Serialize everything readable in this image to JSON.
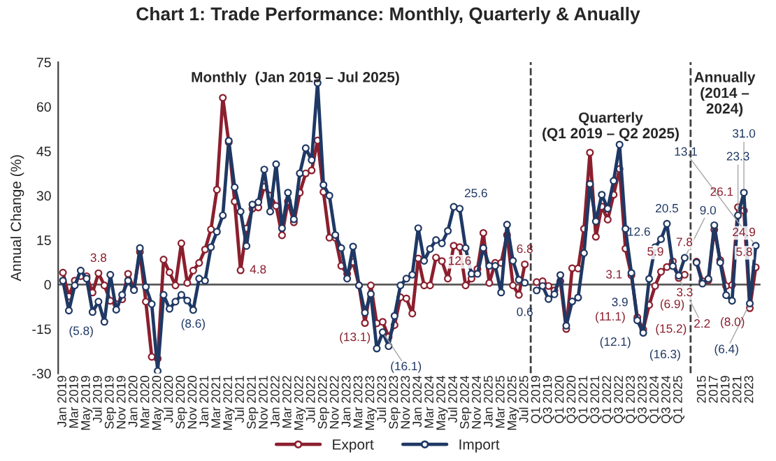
{
  "chart_data": {
    "type": "line",
    "title": "Chart 1: Trade Performance: Monthly, Quarterly & Anually",
    "ylabel": "Annual Change (%)",
    "annotations": [
      "Monthly  (Jan 2019 – Jul 2025)",
      "Quarterly\n(Q1 2019 – Q2 2025)",
      "Annually\n(2014 –\n2024)"
    ],
    "categories": [
      "Jan 2019",
      null,
      "Mar 2019",
      null,
      "May 2019",
      null,
      "Jul 2019",
      null,
      "Sep 2019",
      null,
      "Nov 2019",
      null,
      "Jan 2020",
      null,
      "Mar 2020",
      null,
      "May 2020",
      null,
      "Jul 2020",
      null,
      "Sep 2020",
      null,
      "Nov 2020",
      null,
      "Jan 2021",
      null,
      "Mar 2021",
      null,
      "May 2021",
      null,
      "Jul 2021",
      null,
      "Sep 2021",
      null,
      "Nov 2021",
      null,
      "Jan 2022",
      null,
      "Mar 2022",
      null,
      "May 2022",
      null,
      "Jul 2022",
      null,
      "Sep 2022",
      null,
      "Nov 2022",
      null,
      "Jan 2023",
      null,
      "Mar 2023",
      null,
      "May 2023",
      null,
      "Jul 2023",
      null,
      "Sep 2023",
      null,
      "Nov 2023",
      null,
      "Jan 2024",
      null,
      "Mar 2024",
      null,
      "May 2024",
      null,
      "Jul 2024",
      null,
      "Sep 2024",
      null,
      "Nov 2024",
      null,
      "Jan 2025",
      null,
      "Mar 2025",
      null,
      "May 2025",
      null,
      "Jul 2025",
      null,
      "Q1 2019",
      null,
      "Q3 2019",
      null,
      "Q1 2020",
      null,
      "Q3 2020",
      null,
      "Q1 2021",
      null,
      "Q3 2021",
      null,
      "Q1 2022",
      null,
      "Q3 2022",
      null,
      "Q1 2023",
      null,
      "Q3 2023",
      null,
      "Q1 2024",
      null,
      "Q3 2024",
      null,
      "Q1 2025",
      null,
      null,
      null,
      "2015",
      null,
      "2017",
      null,
      "2019",
      null,
      "2021",
      null,
      "2023",
      null
    ],
    "series": [
      {
        "name": "Export",
        "color": "#8b1f2e",
        "values": [
          4,
          -4,
          1.3,
          2.8,
          2.8,
          -2.7,
          3.8,
          -0.3,
          -5.5,
          -6.6,
          -5,
          3.6,
          -1.6,
          11,
          -5.8,
          -24.4,
          -25,
          8.4,
          4.1,
          -0.3,
          13.9,
          0.5,
          4.7,
          7.3,
          11.8,
          18.6,
          32,
          63,
          48,
          28,
          4.8,
          18.9,
          25.6,
          26,
          33,
          30,
          26.5,
          16.6,
          28,
          21,
          31,
          37.5,
          38.5,
          48.6,
          31.2,
          15.8,
          15.8,
          6.3,
          3.6,
          7.6,
          -0.3,
          -13,
          -0.3,
          -13.1,
          -12.6,
          -17.7,
          -13.7,
          -4.3,
          -4.7,
          -9.8,
          8.8,
          -0.3,
          -0.3,
          9.1,
          7.9,
          2,
          13.1,
          12.6,
          -0.3,
          2,
          5.2,
          17.4,
          0.5,
          7.3,
          7.3,
          16.7,
          -0.3,
          -3.5,
          6.8,
          null,
          0.8,
          1.1,
          -0.5,
          -2,
          1.1,
          -15,
          5.5,
          5.4,
          18.8,
          44.5,
          16.1,
          26.3,
          21.9,
          30.3,
          39,
          12.1,
          3.1,
          -11.1,
          -15.2,
          -6.9,
          -0.5,
          4.3,
          5.9,
          7.8,
          2.2,
          3.3,
          null,
          7.7,
          1.1,
          1.4,
          18.5,
          8.2,
          -0.5,
          -0.2,
          26.1,
          24.9,
          -8.0,
          5.8
        ],
        "value_labels": [
          null,
          null,
          null,
          null,
          null,
          null,
          "3.8",
          null,
          null,
          null,
          null,
          null,
          null,
          null,
          null,
          null,
          null,
          null,
          null,
          null,
          null,
          null,
          null,
          null,
          null,
          null,
          null,
          null,
          null,
          null,
          "4.8",
          null,
          null,
          null,
          null,
          null,
          null,
          null,
          null,
          null,
          null,
          null,
          null,
          null,
          null,
          null,
          null,
          null,
          null,
          null,
          null,
          null,
          null,
          "(13.1)",
          null,
          null,
          null,
          null,
          null,
          null,
          null,
          null,
          null,
          null,
          null,
          null,
          null,
          "12.6",
          null,
          null,
          null,
          null,
          null,
          null,
          null,
          null,
          null,
          null,
          "6.8",
          null,
          null,
          null,
          null,
          null,
          null,
          null,
          null,
          null,
          null,
          null,
          null,
          null,
          null,
          null,
          null,
          null,
          "3.1",
          "(11.1)",
          "(15.2)",
          "(6.9)",
          null,
          null,
          "5.9",
          "7.8",
          "2.2",
          "3.3",
          null,
          null,
          null,
          null,
          null,
          null,
          null,
          null,
          "26.1",
          "24.9",
          "(8.0)",
          "5.8"
        ]
      },
      {
        "name": "Import",
        "color": "#1f3864",
        "values": [
          1.3,
          -8.8,
          -0.3,
          4.7,
          2,
          -9.3,
          -5.8,
          -12.6,
          3.3,
          -8.5,
          -3.5,
          1.3,
          -1.9,
          12.3,
          -0.8,
          -6.6,
          -29.2,
          -3.5,
          -8.2,
          -5.8,
          -3.5,
          -5.4,
          -8.6,
          2,
          1.3,
          12.6,
          17.8,
          23.3,
          48.5,
          32.8,
          24.6,
          13,
          27,
          27.8,
          38.8,
          24.6,
          40.6,
          19,
          31,
          22,
          37.5,
          46,
          42,
          68,
          33.6,
          30,
          16.7,
          12.3,
          2,
          12.8,
          -0.3,
          -9.5,
          -3.2,
          -21.6,
          -16.1,
          -20.8,
          -10.6,
          -0.3,
          2,
          3.3,
          19,
          8,
          12,
          15,
          13.9,
          18.1,
          26.2,
          25.6,
          12.3,
          3.6,
          3.6,
          12.3,
          6.3,
          6.3,
          -2.7,
          20.2,
          8,
          1.6,
          0.6,
          null,
          -2,
          -0.5,
          -4.9,
          -3.3,
          3.2,
          -13.9,
          -5.7,
          -4.4,
          10.6,
          33.9,
          21.3,
          30.3,
          25.6,
          35,
          47.2,
          18.8,
          3.9,
          -12.1,
          -16.3,
          1.9,
          12.6,
          15.3,
          20.5,
          6.2,
          3,
          9.0,
          null,
          7.4,
          0.3,
          1.9,
          20,
          7.4,
          -3.6,
          -5.5,
          23.3,
          31.0,
          -6.4,
          13.1
        ],
        "value_labels": [
          null,
          null,
          null,
          null,
          null,
          null,
          "(5.8)",
          null,
          null,
          null,
          null,
          null,
          null,
          null,
          null,
          null,
          null,
          null,
          null,
          null,
          null,
          null,
          "(8.6)",
          null,
          null,
          null,
          null,
          null,
          null,
          null,
          null,
          null,
          null,
          null,
          null,
          null,
          null,
          null,
          null,
          null,
          null,
          null,
          null,
          null,
          null,
          null,
          null,
          null,
          null,
          null,
          null,
          null,
          null,
          null,
          "(16.1)",
          null,
          null,
          null,
          null,
          null,
          null,
          null,
          null,
          null,
          null,
          null,
          null,
          "25.6",
          null,
          null,
          null,
          null,
          null,
          null,
          null,
          null,
          null,
          null,
          "0.6",
          null,
          null,
          null,
          null,
          null,
          null,
          null,
          null,
          null,
          null,
          null,
          null,
          null,
          null,
          null,
          null,
          null,
          "3.9",
          "(12.1)",
          "(16.3)",
          null,
          "12.6",
          null,
          "20.5",
          null,
          null,
          "9.0",
          null,
          null,
          null,
          null,
          null,
          null,
          null,
          null,
          "23.3",
          "31.0",
          "(6.4)",
          "13.1"
        ]
      }
    ],
    "ylim": [
      -30,
      75
    ],
    "yticks": [
      -30,
      -15,
      0,
      15,
      30,
      45,
      60,
      75
    ],
    "ref_lines": [
      {
        "axis": "y",
        "value": 0,
        "color": "#595959",
        "line_style": "solid"
      }
    ],
    "marker": "circle",
    "line_style": "solid",
    "grid": false,
    "legend": "bottom"
  }
}
